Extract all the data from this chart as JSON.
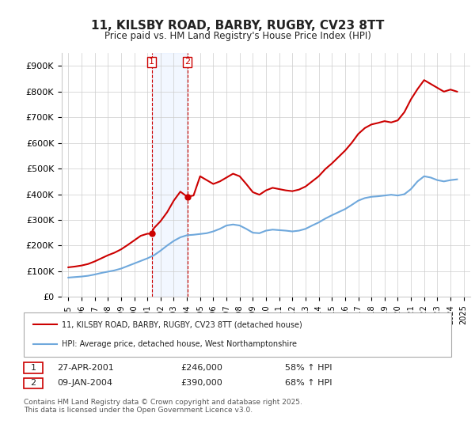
{
  "title": "11, KILSBY ROAD, BARBY, RUGBY, CV23 8TT",
  "subtitle": "Price paid vs. HM Land Registry's House Price Index (HPI)",
  "hpi_color": "#6fa8dc",
  "price_color": "#cc0000",
  "bg_color": "#ffffff",
  "grid_color": "#cccccc",
  "ylim": [
    0,
    950000
  ],
  "yticks": [
    0,
    100000,
    200000,
    300000,
    400000,
    500000,
    600000,
    700000,
    800000,
    900000
  ],
  "ytick_labels": [
    "£0",
    "£100K",
    "£200K",
    "£300K",
    "£400K",
    "£500K",
    "£600K",
    "£700K",
    "£800K",
    "£900K"
  ],
  "sale1_date": "27-APR-2001",
  "sale1_price": 246000,
  "sale1_hpi": "58% ↑ HPI",
  "sale1_x": 2001.32,
  "sale2_date": "09-JAN-2004",
  "sale2_price": 390000,
  "sale2_hpi": "68% ↑ HPI",
  "sale2_x": 2004.03,
  "legend_line1": "11, KILSBY ROAD, BARBY, RUGBY, CV23 8TT (detached house)",
  "legend_line2": "HPI: Average price, detached house, West Northamptonshire",
  "footnote": "Contains HM Land Registry data © Crown copyright and database right 2025.\nThis data is licensed under the Open Government Licence v3.0.",
  "hpi_data_x": [
    1995.0,
    1995.5,
    1996.0,
    1996.5,
    1997.0,
    1997.5,
    1998.0,
    1998.5,
    1999.0,
    1999.5,
    2000.0,
    2000.5,
    2001.0,
    2001.5,
    2002.0,
    2002.5,
    2003.0,
    2003.5,
    2004.0,
    2004.5,
    2005.0,
    2005.5,
    2006.0,
    2006.5,
    2007.0,
    2007.5,
    2008.0,
    2008.5,
    2009.0,
    2009.5,
    2010.0,
    2010.5,
    2011.0,
    2011.5,
    2012.0,
    2012.5,
    2013.0,
    2013.5,
    2014.0,
    2014.5,
    2015.0,
    2015.5,
    2016.0,
    2016.5,
    2017.0,
    2017.5,
    2018.0,
    2018.5,
    2019.0,
    2019.5,
    2020.0,
    2020.5,
    2021.0,
    2021.5,
    2022.0,
    2022.5,
    2023.0,
    2023.5,
    2024.0,
    2024.5
  ],
  "hpi_data_y": [
    75000,
    77000,
    79000,
    82000,
    87000,
    93000,
    98000,
    103000,
    110000,
    120000,
    130000,
    140000,
    150000,
    162000,
    180000,
    200000,
    218000,
    232000,
    240000,
    242000,
    245000,
    248000,
    255000,
    265000,
    278000,
    282000,
    278000,
    265000,
    250000,
    248000,
    258000,
    262000,
    260000,
    258000,
    255000,
    258000,
    265000,
    278000,
    290000,
    305000,
    318000,
    330000,
    342000,
    358000,
    375000,
    385000,
    390000,
    392000,
    395000,
    398000,
    395000,
    400000,
    420000,
    450000,
    470000,
    465000,
    455000,
    450000,
    455000,
    458000
  ],
  "price_data_x": [
    1995.0,
    1995.5,
    1996.0,
    1996.5,
    1997.0,
    1997.5,
    1998.0,
    1998.5,
    1999.0,
    1999.5,
    2000.0,
    2000.5,
    2001.0,
    2001.32,
    2001.5,
    2002.0,
    2002.5,
    2003.0,
    2003.5,
    2004.03,
    2004.5,
    2005.0,
    2005.5,
    2006.0,
    2006.5,
    2007.0,
    2007.5,
    2008.0,
    2008.5,
    2009.0,
    2009.5,
    2010.0,
    2010.5,
    2011.0,
    2011.5,
    2012.0,
    2012.5,
    2013.0,
    2013.5,
    2014.0,
    2014.5,
    2015.0,
    2015.5,
    2016.0,
    2016.5,
    2017.0,
    2017.5,
    2018.0,
    2018.5,
    2019.0,
    2019.5,
    2020.0,
    2020.5,
    2021.0,
    2021.5,
    2022.0,
    2022.5,
    2023.0,
    2023.5,
    2024.0,
    2024.5
  ],
  "price_data_y": [
    115000,
    118000,
    122000,
    128000,
    138000,
    150000,
    162000,
    172000,
    185000,
    202000,
    220000,
    238000,
    246000,
    246000,
    268000,
    295000,
    330000,
    375000,
    410000,
    390000,
    395000,
    470000,
    455000,
    440000,
    450000,
    465000,
    480000,
    470000,
    440000,
    408000,
    398000,
    415000,
    425000,
    420000,
    415000,
    412000,
    418000,
    430000,
    450000,
    470000,
    498000,
    520000,
    545000,
    570000,
    600000,
    635000,
    658000,
    672000,
    678000,
    685000,
    680000,
    688000,
    720000,
    770000,
    810000,
    845000,
    830000,
    815000,
    800000,
    808000,
    800000
  ]
}
